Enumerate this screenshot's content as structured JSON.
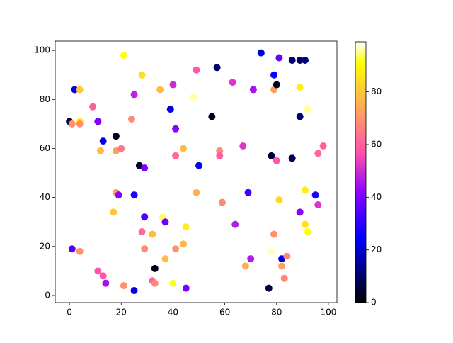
{
  "chart_data": {
    "type": "scatter",
    "colormap": "gnuplot2",
    "x": [
      0,
      1,
      2,
      4,
      4,
      4,
      1,
      4,
      9,
      11,
      13,
      12,
      18,
      18,
      20,
      21,
      24,
      25,
      28,
      27,
      29,
      18,
      19,
      17,
      25,
      29,
      11,
      13,
      14,
      21,
      25,
      28,
      29,
      32,
      32,
      33,
      33,
      36,
      37,
      37,
      40,
      41,
      44,
      45,
      45,
      35,
      40,
      39,
      41,
      41,
      44,
      48,
      49,
      49,
      50,
      55,
      57,
      58,
      58,
      59,
      63,
      64,
      67,
      69,
      68,
      70,
      71,
      74,
      78,
      77,
      78,
      79,
      79,
      80,
      80,
      79,
      81,
      81,
      82,
      82,
      84,
      83,
      86,
      89,
      91,
      89,
      89,
      92,
      86,
      89,
      91,
      91,
      92,
      95,
      96,
      96,
      98
    ],
    "y": [
      71,
      70,
      84,
      84,
      71,
      70,
      19,
      18,
      77,
      71,
      63,
      59,
      65,
      59,
      60,
      98,
      72,
      82,
      90,
      53,
      52,
      42,
      41,
      34,
      41,
      32,
      10,
      8,
      5,
      4,
      2,
      26,
      19,
      25,
      6,
      5,
      11,
      32,
      30,
      15,
      5,
      19,
      21,
      28,
      3,
      84,
      86,
      76,
      68,
      57,
      60,
      81,
      92,
      42,
      53,
      73,
      93,
      59,
      57,
      38,
      87,
      29,
      61,
      42,
      12,
      15,
      84,
      99,
      57,
      3,
      18,
      90,
      84,
      86,
      55,
      25,
      97,
      39,
      15,
      12,
      16,
      7,
      96,
      96,
      96,
      85,
      73,
      76,
      56,
      34,
      43,
      29,
      26,
      41,
      37,
      58,
      61
    ],
    "c": [
      5,
      70,
      22,
      80,
      88,
      70,
      35,
      70,
      60,
      40,
      22,
      78,
      3,
      72,
      65,
      92,
      68,
      48,
      85,
      5,
      40,
      72,
      42,
      80,
      28,
      35,
      58,
      58,
      45,
      70,
      22,
      62,
      68,
      78,
      60,
      68,
      2,
      94,
      38,
      78,
      92,
      70,
      77,
      88,
      40,
      78,
      50,
      22,
      42,
      62,
      78,
      96,
      58,
      76,
      25,
      3,
      10,
      68,
      60,
      68,
      52,
      47,
      52,
      33,
      75,
      47,
      45,
      20,
      5,
      7,
      97,
      25,
      72,
      3,
      58,
      70,
      38,
      83,
      22,
      72,
      68,
      68,
      10,
      10,
      12,
      88,
      12,
      96,
      8,
      42,
      88,
      85,
      92,
      28,
      52,
      62,
      60
    ],
    "xlim": [
      -5.5,
      103.3
    ],
    "ylim": [
      -2.9,
      103.8
    ],
    "clim": [
      0,
      99
    ],
    "xticks": [
      0,
      20,
      40,
      60,
      80,
      100
    ],
    "yticks": [
      0,
      20,
      40,
      60,
      80,
      100
    ],
    "cticks": [
      0,
      20,
      40,
      60,
      80
    ]
  }
}
